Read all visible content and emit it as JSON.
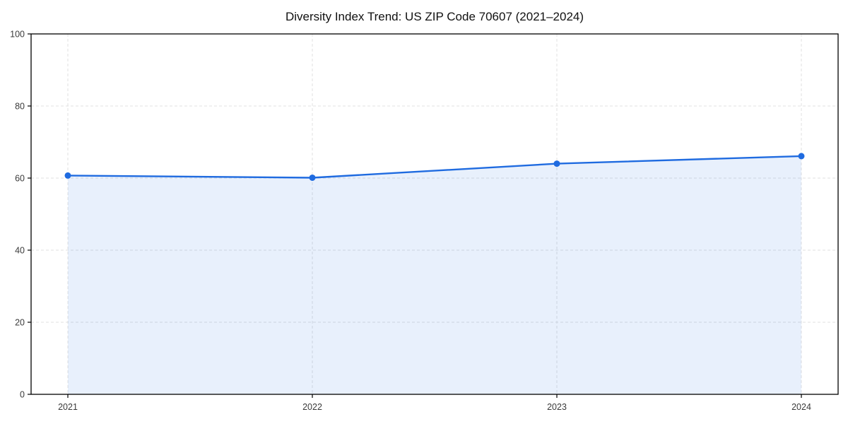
{
  "figure": {
    "title": "Diversity Index Trend: US ZIP Code 70607 (2021–2024)",
    "background_color": "#ffffff"
  },
  "chart_data": {
    "type": "line",
    "title": "Diversity Index Trend: US ZIP Code 70607 (2021–2024)",
    "categories": [
      "2021",
      "2022",
      "2023",
      "2024"
    ],
    "x": [
      2021,
      2022,
      2023,
      2024
    ],
    "series": [
      {
        "name": "Diversity Index",
        "values": [
          60.7,
          60.1,
          64.0,
          66.1
        ]
      }
    ],
    "xlabel": "",
    "ylabel": "",
    "ylim": [
      0,
      100
    ],
    "yticks": [
      0,
      20,
      40,
      60,
      80,
      100
    ],
    "grid": true,
    "grid_style": "dashed",
    "legend_position": "none",
    "area_fill": true,
    "marker": "circle",
    "colors": {
      "line": "#1f6be0",
      "marker": "#1f6be0",
      "area_fill": "rgba(31,107,224,0.10)",
      "grid": "#e0e0e0",
      "spine": "#000000",
      "tick_label": "#3a3a3a",
      "title": "#111111"
    }
  }
}
